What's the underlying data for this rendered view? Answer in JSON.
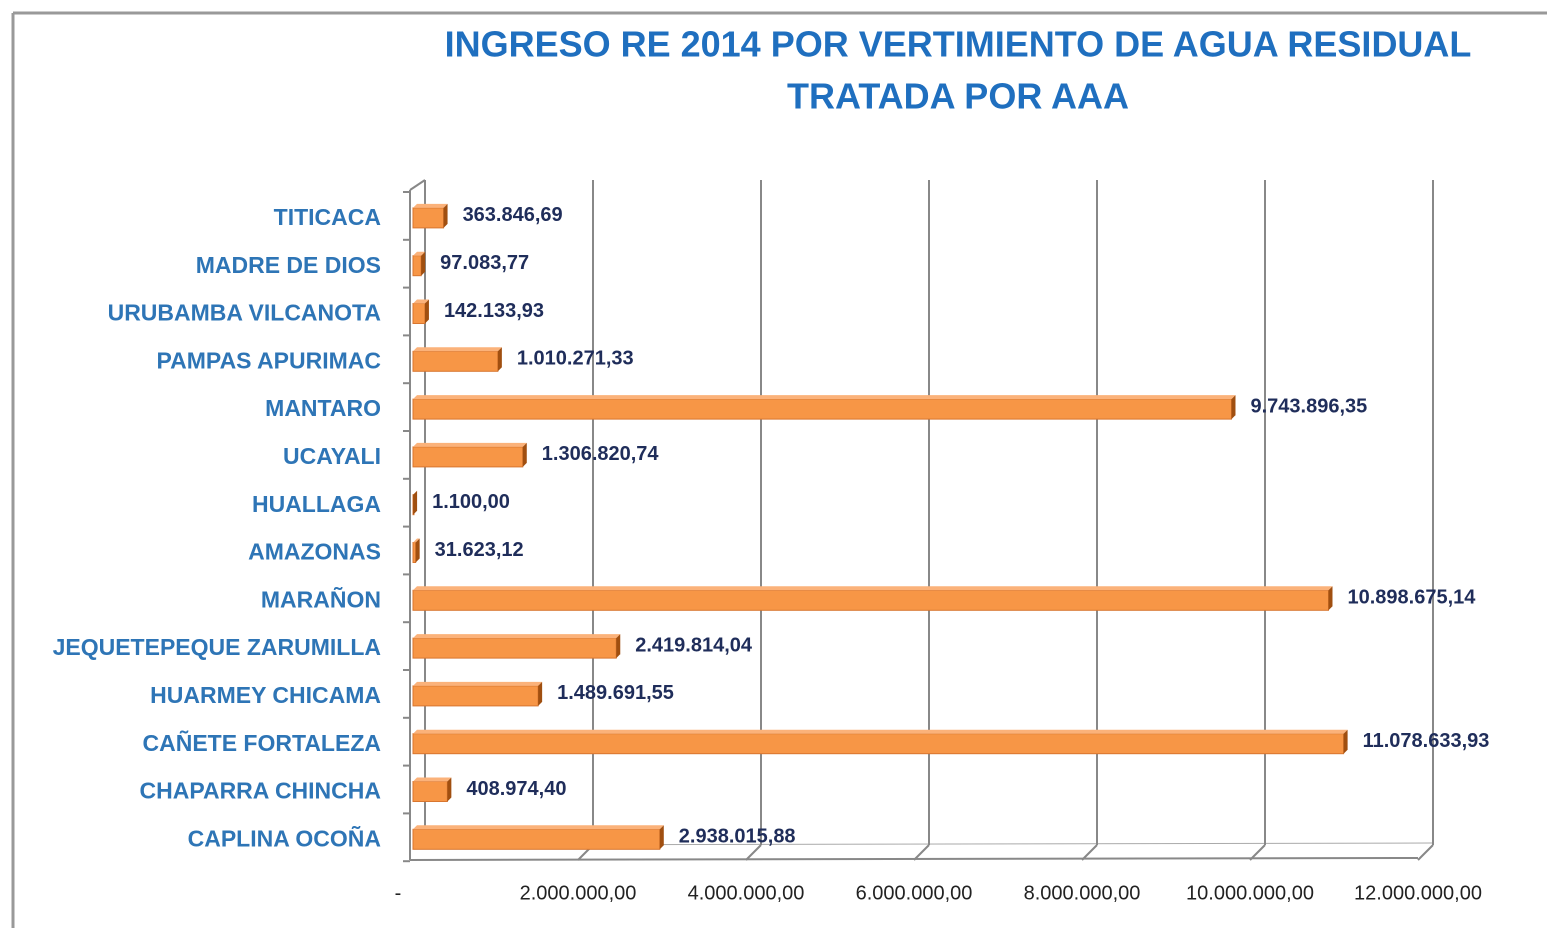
{
  "chart_data": {
    "type": "bar",
    "orientation": "horizontal",
    "title": [
      "INGRESO RE 2014 POR VERTIMIENTO DE AGUA RESIDUAL",
      "TRATADA  POR AAA"
    ],
    "categories": [
      "TITICACA",
      "MADRE DE DIOS",
      "URUBAMBA VILCANOTA",
      "PAMPAS APURIMAC",
      "MANTARO",
      "UCAYALI",
      "HUALLAGA",
      "AMAZONAS",
      "MARAÑON",
      "JEQUETEPEQUE ZARUMILLA",
      "HUARMEY CHICAMA",
      "CAÑETE FORTALEZA",
      "CHAPARRA CHINCHA",
      "CAPLINA OCOÑA"
    ],
    "values": [
      363846.69,
      97083.77,
      142133.93,
      1010271.33,
      9743896.35,
      1306820.74,
      1100.0,
      31623.12,
      10898675.14,
      2419814.04,
      1489691.55,
      11078633.93,
      408974.4,
      2938015.88
    ],
    "value_labels": [
      "363.846,69",
      "97.083,77",
      "142.133,93",
      "1.010.271,33",
      "9.743.896,35",
      "1.306.820,74",
      "1.100,00",
      "31.623,12",
      "10.898.675,14",
      "2.419.814,04",
      "1.489.691,55",
      "11.078.633,93",
      "408.974,40",
      "2.938.015,88"
    ],
    "color": "#f79646",
    "xlim": [
      0,
      12000000
    ],
    "xticks": [
      {
        "value": 0,
        "label": "-"
      },
      {
        "value": 2000000,
        "label": "2.000.000,00"
      },
      {
        "value": 4000000,
        "label": "4.000.000,00"
      },
      {
        "value": 6000000,
        "label": "6.000.000,00"
      },
      {
        "value": 8000000,
        "label": "8.000.000,00"
      },
      {
        "value": 10000000,
        "label": "10.000.000,00"
      },
      {
        "value": 12000000,
        "label": "12.000.000,00"
      }
    ],
    "grid": true
  }
}
